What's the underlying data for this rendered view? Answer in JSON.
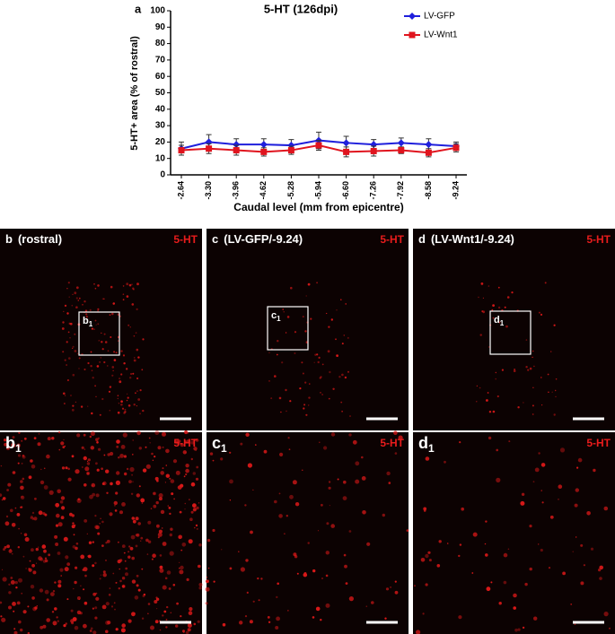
{
  "chart_data": {
    "type": "line",
    "panel": "a",
    "title": "5-HT (126dpi)",
    "x_label": "Caudal level (mm from epicentre)",
    "y_label": "5-HT+ area (% of rostral)",
    "categories": [
      "-2.64",
      "-3.30",
      "-3.96",
      "-4.62",
      "-5.28",
      "-5.94",
      "-6.60",
      "-7.26",
      "-7.92",
      "-8.58",
      "-9.24"
    ],
    "ylim": [
      0,
      100
    ],
    "yticks": [
      0,
      10,
      20,
      30,
      40,
      50,
      60,
      70,
      80,
      90,
      100
    ],
    "grid": false,
    "legend": "top-right",
    "series": [
      {
        "name": "LV-GFP",
        "color": "#1f1fdc",
        "marker": "diamond",
        "values": [
          16,
          20,
          18.5,
          18.5,
          18,
          21,
          19.5,
          18.5,
          19.5,
          18.5,
          17.5
        ],
        "errors": [
          4,
          4.5,
          3.5,
          3.5,
          3.5,
          5,
          4,
          3,
          3,
          3.5,
          2.5
        ]
      },
      {
        "name": "LV-Wnt1",
        "color": "#e0141e",
        "marker": "square",
        "values": [
          15,
          16,
          15,
          14,
          15,
          18,
          14,
          14.5,
          15,
          13.5,
          16.5
        ],
        "errors": [
          3,
          3,
          3,
          2.5,
          2.5,
          3,
          3,
          3,
          2,
          2.5,
          2.5
        ]
      }
    ]
  },
  "panels": [
    {
      "letter": "b",
      "caption": "(rostral)",
      "stain": "5-HT"
    },
    {
      "letter": "c",
      "caption": "(LV-GFP/-9.24)",
      "stain": "5-HT"
    },
    {
      "letter": "d",
      "caption": "(LV-Wnt1/-9.24)",
      "stain": "5-HT"
    },
    {
      "letter": "b",
      "sub": "1",
      "stain": "5-HT"
    },
    {
      "letter": "c",
      "sub": "1",
      "stain": "5-HT"
    },
    {
      "letter": "d",
      "sub": "1",
      "stain": "5-HT"
    }
  ],
  "insets": [
    {
      "letter": "b",
      "sub": "1"
    },
    {
      "letter": "c",
      "sub": "1"
    },
    {
      "letter": "d",
      "sub": "1"
    }
  ]
}
